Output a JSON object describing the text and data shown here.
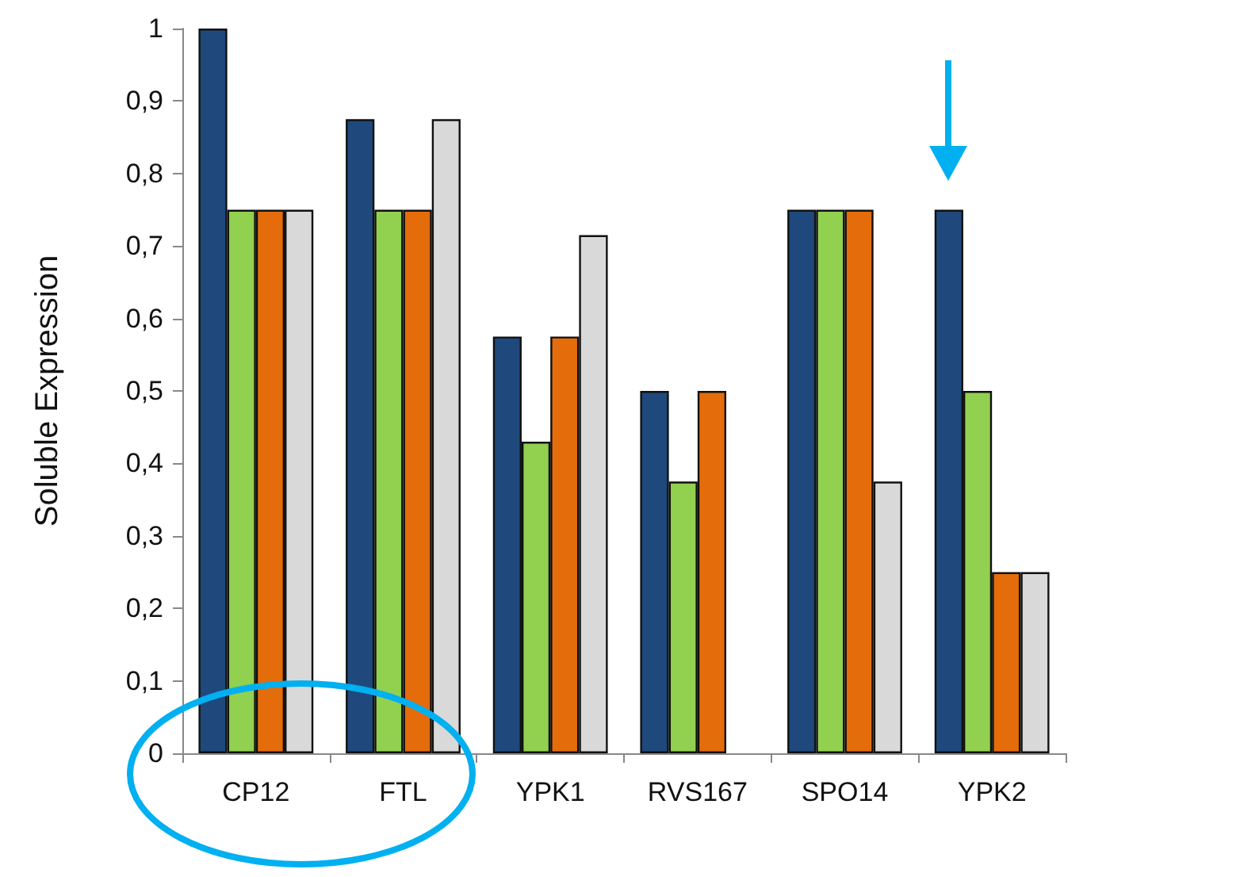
{
  "chart_data": {
    "type": "bar",
    "ylabel": "Soluble Expression",
    "categories": [
      "CP12",
      "FTL",
      "YPK1",
      "RVS167",
      "SPO14",
      "YPK2"
    ],
    "series": [
      {
        "color": "#1f497d",
        "values": [
          1,
          0.875,
          0.575,
          0.5,
          0.75,
          0.75
        ]
      },
      {
        "color": "#92d050",
        "values": [
          0.75,
          0.75,
          0.43,
          0.375,
          0.75,
          0.5
        ]
      },
      {
        "color": "#e46c0a",
        "values": [
          0.75,
          0.75,
          0.575,
          0.5,
          0.75,
          0.25
        ]
      },
      {
        "color": "#d9d9d9",
        "values": [
          0.75,
          0.875,
          0.715,
          null,
          0.375,
          0.25
        ]
      }
    ],
    "ylim": [
      0,
      1
    ],
    "yticks": [
      {
        "value": 0,
        "label": "0"
      },
      {
        "value": 0.1,
        "label": "0,1"
      },
      {
        "value": 0.2,
        "label": "0,2"
      },
      {
        "value": 0.3,
        "label": "0,3"
      },
      {
        "value": 0.4,
        "label": "0,4"
      },
      {
        "value": 0.5,
        "label": "0,5"
      },
      {
        "value": 0.6,
        "label": "0,6"
      },
      {
        "value": 0.7,
        "label": "0,7"
      },
      {
        "value": 0.8,
        "label": "0,8"
      },
      {
        "value": 0.9,
        "label": "0,9"
      },
      {
        "value": 1,
        "label": "1"
      }
    ],
    "grid": false
  }
}
